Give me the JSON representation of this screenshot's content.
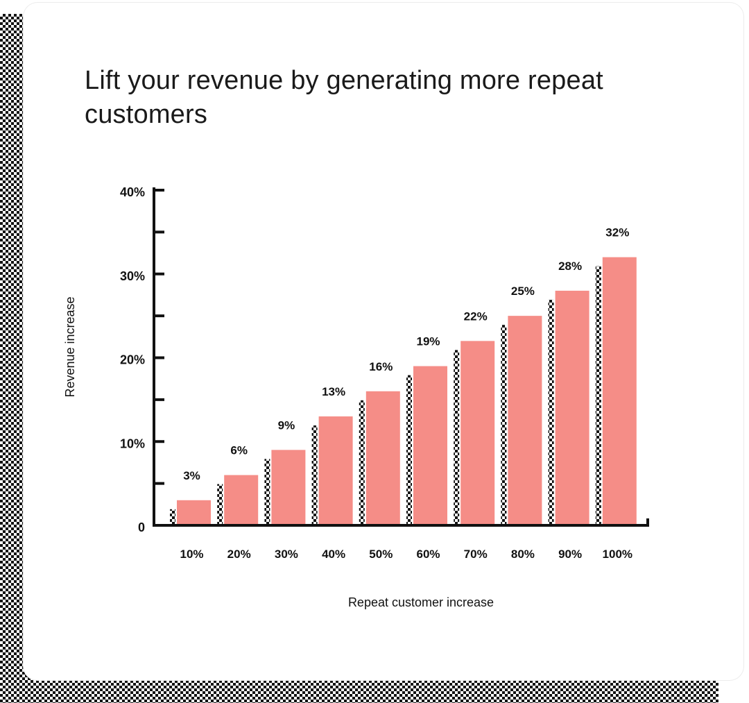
{
  "colors": {
    "bar": "#f58d87",
    "axis": "#111111",
    "text": "#111111"
  },
  "chart_data": {
    "type": "bar",
    "title": "Lift your revenue by generating more repeat customers",
    "xlabel": "Repeat customer increase",
    "ylabel": "Revenue increase",
    "categories": [
      "10%",
      "20%",
      "30%",
      "40%",
      "50%",
      "60%",
      "70%",
      "80%",
      "90%",
      "100%"
    ],
    "values": [
      3,
      6,
      9,
      13,
      16,
      19,
      22,
      25,
      28,
      32
    ],
    "data_labels": [
      "3%",
      "6%",
      "9%",
      "13%",
      "16%",
      "19%",
      "22%",
      "25%",
      "28%",
      "32%"
    ],
    "ylim": [
      0,
      40
    ],
    "yticks": [
      0,
      10,
      20,
      30,
      40
    ],
    "ytick_labels": [
      "0",
      "10%",
      "20%",
      "30%",
      "40%"
    ],
    "minor_yticks": [
      5,
      15,
      25,
      35
    ],
    "grid": false,
    "legend": "none"
  }
}
